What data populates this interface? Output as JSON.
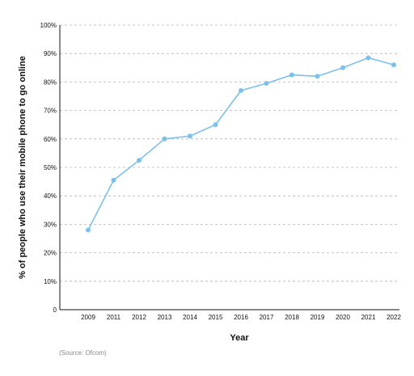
{
  "chart_data": {
    "type": "line",
    "x": [
      "2009",
      "2011",
      "2012",
      "2013",
      "2014",
      "2015",
      "2016",
      "2017",
      "2018",
      "2019",
      "2020",
      "2021",
      "2022"
    ],
    "series": [
      {
        "values": [
          28,
          45.5,
          52.5,
          60,
          61,
          65,
          77,
          79.5,
          82.5,
          82,
          85,
          88.5,
          86
        ]
      }
    ],
    "xlabel": "Year",
    "ylabel": "% of people who use their mobile phone to go online",
    "ylim": [
      0,
      100
    ],
    "yticks": [
      "0",
      "10%",
      "20%",
      "30%",
      "40%",
      "50%",
      "60%",
      "70%",
      "80%",
      "90%",
      "100%"
    ],
    "grid": "horizontal dashed",
    "line_color": "#7cc0ec",
    "source": "(Source: Ofcom)"
  }
}
